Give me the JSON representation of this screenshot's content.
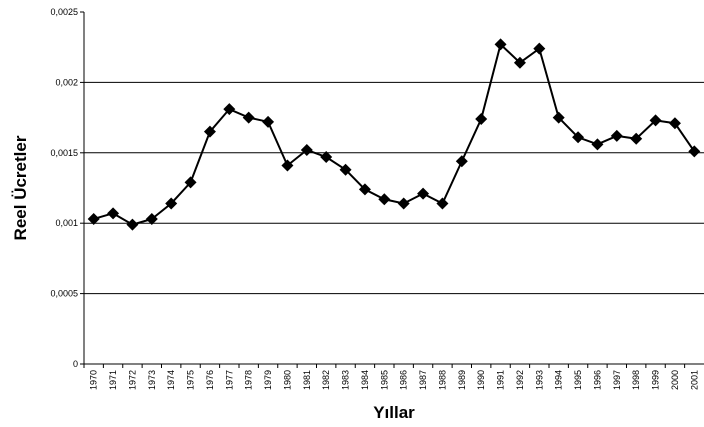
{
  "chart_data": {
    "type": "line",
    "x_label": "Yıllar",
    "y_label": "Reel Ücretler",
    "categories": [
      "1970",
      "1971",
      "1972",
      "1973",
      "1974",
      "1975",
      "1976",
      "1977",
      "1978",
      "1979",
      "1980",
      "1981",
      "1982",
      "1983",
      "1984",
      "1985",
      "1986",
      "1987",
      "1988",
      "1989",
      "1990",
      "1991",
      "1992",
      "1993",
      "1994",
      "1995",
      "1996",
      "1997",
      "1998",
      "1999",
      "2000",
      "2001"
    ],
    "series": [
      {
        "name": null,
        "color": "#000000",
        "values": [
          0.00103,
          0.00107,
          0.00099,
          0.00103,
          0.00114,
          0.00129,
          0.00165,
          0.00181,
          0.00175,
          0.00172,
          0.00141,
          0.00152,
          0.00147,
          0.00138,
          0.00124,
          0.00117,
          0.00114,
          0.00121,
          0.00114,
          0.00144,
          0.00174,
          0.00227,
          0.00214,
          0.00224,
          0.00175,
          0.00161,
          0.00156,
          0.00162,
          0.0016,
          0.00173,
          0.00171,
          0.00151
        ]
      }
    ],
    "ylim": [
      0,
      0.0025
    ],
    "yticks": [
      0,
      {
        "value": 0.0005,
        "label": "0,0005"
      },
      {
        "value": 0.001,
        "label": "0,001"
      },
      {
        "value": 0.0015,
        "label": "0,0015"
      },
      {
        "value": 0.002,
        "label": "0,002"
      },
      {
        "value": 0.0025,
        "label": "0,0025"
      }
    ],
    "grid": true
  }
}
